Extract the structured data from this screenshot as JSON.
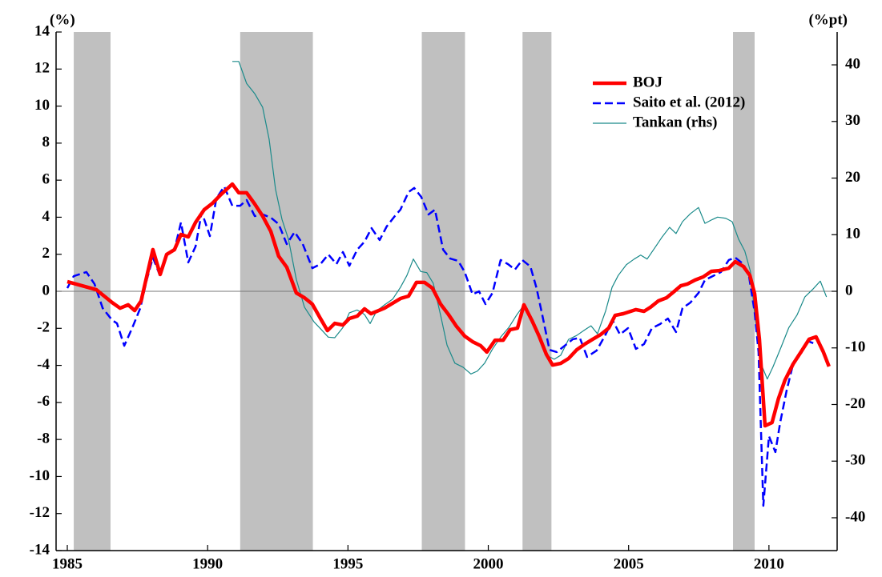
{
  "chart_data": {
    "type": "line",
    "y_label": "(%)",
    "y2_label": "(%pt)",
    "xlim": [
      1984.6,
      2012.43
    ],
    "xticks": [
      1985,
      1990,
      1995,
      2000,
      2005,
      2010
    ],
    "ylim": [
      -14,
      14
    ],
    "yticks": [
      -14,
      -12,
      -10,
      -8,
      -6,
      -4,
      -2,
      0,
      2,
      4,
      6,
      8,
      10,
      12,
      14
    ],
    "y2lim": [
      -45.8,
      45.8
    ],
    "y2ticks": [
      -40,
      -30,
      -20,
      -10,
      0,
      10,
      20,
      30,
      40
    ],
    "shaded_periods": [
      [
        1985.23,
        1986.54
      ],
      [
        1991.16,
        1993.75
      ],
      [
        1997.63,
        1999.17
      ],
      [
        2001.22,
        2002.25
      ],
      [
        2008.72,
        2009.49
      ]
    ],
    "shade_color": "#c0c0c0",
    "legend": "upper-right",
    "series": [
      {
        "name": "BOJ",
        "color": "#ff0000",
        "linestyle": "solid",
        "linewidth": 4.5,
        "x": [
          1985.0,
          1986.03,
          1986.6,
          1986.88,
          1987.17,
          1987.4,
          1987.63,
          1988.05,
          1988.31,
          1988.54,
          1988.82,
          1989.05,
          1989.31,
          1989.57,
          1989.88,
          1990.17,
          1990.45,
          1990.88,
          1991.11,
          1991.39,
          1991.68,
          1991.96,
          1992.25,
          1992.53,
          1992.82,
          1993.16,
          1993.45,
          1993.73,
          1994.02,
          1994.27,
          1994.53,
          1994.82,
          1995.05,
          1995.33,
          1995.59,
          1995.82,
          1996.3,
          1996.87,
          1997.16,
          1997.44,
          1997.73,
          1998.01,
          1998.3,
          1998.58,
          1998.87,
          1999.16,
          1999.44,
          1999.73,
          1999.95,
          2000.24,
          2000.53,
          2000.78,
          2001.04,
          2001.27,
          2001.55,
          2001.81,
          2002.07,
          2002.29,
          2002.58,
          2002.86,
          2003.15,
          2003.44,
          2003.72,
          2004.01,
          2004.29,
          2004.52,
          2004.81,
          2005.26,
          2005.55,
          2005.78,
          2006.06,
          2006.35,
          2006.63,
          2006.86,
          2007.09,
          2007.37,
          2007.66,
          2007.95,
          2008.23,
          2008.57,
          2008.8,
          2009.09,
          2009.32,
          2009.49,
          2009.66,
          2009.86,
          2010.11,
          2010.34,
          2010.57,
          2010.86,
          2011.14,
          2011.43,
          2011.68,
          2011.94,
          2012.14
        ],
        "values": [
          0.52,
          0.09,
          -0.61,
          -0.91,
          -0.73,
          -1.04,
          -0.52,
          2.25,
          0.91,
          1.99,
          2.25,
          3.07,
          2.94,
          3.72,
          4.41,
          4.75,
          5.19,
          5.79,
          5.32,
          5.32,
          4.71,
          4.06,
          3.24,
          1.9,
          1.3,
          -0.09,
          -0.35,
          -0.69,
          -1.47,
          -2.12,
          -1.73,
          -1.82,
          -1.47,
          -1.34,
          -0.95,
          -1.21,
          -0.91,
          -0.39,
          -0.26,
          0.48,
          0.48,
          0.17,
          -0.69,
          -1.25,
          -1.9,
          -2.42,
          -2.72,
          -2.94,
          -3.28,
          -2.64,
          -2.64,
          -2.07,
          -1.99,
          -0.73,
          -1.56,
          -2.42,
          -3.41,
          -3.98,
          -3.89,
          -3.63,
          -3.16,
          -2.85,
          -2.59,
          -2.33,
          -1.99,
          -1.3,
          -1.21,
          -0.99,
          -1.08,
          -0.86,
          -0.52,
          -0.35,
          0.0,
          0.3,
          0.39,
          0.61,
          0.78,
          1.08,
          1.12,
          1.25,
          1.6,
          1.34,
          0.86,
          -0.13,
          -2.59,
          -7.26,
          -7.09,
          -5.79,
          -4.8,
          -3.93,
          -3.28,
          -2.59,
          -2.46,
          -3.28,
          -4.06
        ]
      },
      {
        "name": "Saito et al. (2012)",
        "color": "#0000ff",
        "linestyle": "dashed",
        "linewidth": 2.5,
        "x": [
          1985.0,
          1985.23,
          1985.68,
          1985.97,
          1986.26,
          1986.6,
          1986.77,
          1987.03,
          1987.31,
          1987.6,
          1987.83,
          1988.05,
          1988.31,
          1988.54,
          1988.82,
          1989.05,
          1989.31,
          1989.57,
          1989.79,
          1990.08,
          1990.31,
          1990.59,
          1990.88,
          1991.16,
          1991.39,
          1991.68,
          1991.96,
          1992.25,
          1992.53,
          1992.82,
          1993.1,
          1993.39,
          1993.73,
          1994.02,
          1994.3,
          1994.59,
          1994.82,
          1995.05,
          1995.33,
          1995.59,
          1995.84,
          1996.13,
          1996.38,
          1996.67,
          1996.87,
          1997.16,
          1997.36,
          1997.61,
          1997.87,
          1998.1,
          1998.39,
          1998.64,
          1998.93,
          1999.16,
          1999.44,
          1999.67,
          1999.9,
          2000.15,
          2000.44,
          2000.7,
          2000.95,
          2001.21,
          2001.5,
          2001.72,
          2001.95,
          2002.18,
          2002.44,
          2002.72,
          2003.01,
          2003.26,
          2003.52,
          2003.86,
          2004.15,
          2004.43,
          2004.69,
          2004.98,
          2005.26,
          2005.55,
          2005.83,
          2006.12,
          2006.4,
          2006.69,
          2006.92,
          2007.2,
          2007.49,
          2007.72,
          2008.0,
          2008.29,
          2008.57,
          2008.8,
          2009.09,
          2009.29,
          2009.49,
          2009.63,
          2009.8,
          2010.0,
          2010.23,
          2010.4,
          2010.63,
          2010.86,
          2011.14,
          2011.37,
          2011.66
        ],
        "values": [
          0.17,
          0.82,
          1.04,
          0.39,
          -0.91,
          -1.56,
          -1.73,
          -2.94,
          -1.99,
          -0.91,
          0.61,
          1.82,
          0.82,
          1.99,
          2.25,
          3.72,
          1.56,
          2.42,
          4.28,
          2.98,
          5.01,
          5.66,
          4.62,
          4.62,
          4.93,
          4.06,
          4.15,
          3.98,
          3.63,
          2.55,
          3.2,
          2.55,
          1.25,
          1.47,
          1.99,
          1.47,
          2.12,
          1.38,
          2.25,
          2.68,
          3.41,
          2.77,
          3.5,
          4.06,
          4.41,
          5.36,
          5.58,
          5.1,
          4.15,
          4.41,
          2.25,
          1.77,
          1.64,
          1.04,
          -0.17,
          0.0,
          -0.69,
          -0.09,
          1.69,
          1.47,
          1.17,
          1.69,
          1.34,
          0.17,
          -1.47,
          -3.16,
          -3.28,
          -2.94,
          -2.59,
          -2.51,
          -3.54,
          -3.2,
          -2.42,
          -1.56,
          -2.33,
          -1.99,
          -3.11,
          -2.85,
          -1.99,
          -1.77,
          -1.47,
          -2.2,
          -0.91,
          -0.61,
          -0.09,
          0.61,
          0.82,
          1.04,
          1.69,
          1.82,
          1.47,
          0.82,
          -1.12,
          -3.28,
          -11.58,
          -7.82,
          -8.68,
          -7.09,
          -5.36,
          -3.93,
          -3.37,
          -2.68,
          -2.85
        ]
      },
      {
        "name": "Tankan (rhs)",
        "color": "#1a8a8a",
        "linestyle": "solid",
        "linewidth": 1.2,
        "axis": "y2",
        "x": [
          1990.88,
          1991.11,
          1991.39,
          1991.68,
          1991.96,
          1992.19,
          1992.42,
          1992.65,
          1992.88,
          1993.16,
          1993.45,
          1993.79,
          1994.02,
          1994.3,
          1994.53,
          1994.82,
          1995.05,
          1995.33,
          1995.59,
          1995.79,
          1996.02,
          1996.3,
          1996.59,
          1996.87,
          1997.1,
          1997.33,
          1997.59,
          1997.81,
          1998.04,
          1998.3,
          1998.53,
          1998.81,
          1999.1,
          1999.38,
          1999.61,
          1999.87,
          2000.15,
          2000.44,
          2000.73,
          2001.01,
          2001.27,
          2001.55,
          2001.84,
          2002.07,
          2002.35,
          2002.58,
          2002.86,
          2003.15,
          2003.44,
          2003.66,
          2003.89,
          2004.18,
          2004.41,
          2004.63,
          2004.92,
          2005.2,
          2005.43,
          2005.66,
          2005.95,
          2006.18,
          2006.46,
          2006.69,
          2006.92,
          2007.2,
          2007.49,
          2007.72,
          2007.95,
          2008.17,
          2008.46,
          2008.69,
          2008.92,
          2009.14,
          2009.34,
          2009.51,
          2009.71,
          2009.94,
          2010.14,
          2010.43,
          2010.71,
          2011.0,
          2011.28,
          2011.57,
          2011.83,
          2012.05
        ],
        "values": [
          40.6,
          40.6,
          36.7,
          34.9,
          32.5,
          26.9,
          18.0,
          12.7,
          9.2,
          2.1,
          -2.8,
          -5.4,
          -6.6,
          -8.1,
          -8.2,
          -6.4,
          -3.8,
          -3.3,
          -4.1,
          -5.7,
          -3.5,
          -2.4,
          -1.4,
          0.7,
          2.8,
          5.7,
          3.5,
          3.3,
          1.4,
          -4.2,
          -9.5,
          -12.7,
          -13.4,
          -14.6,
          -14.1,
          -12.7,
          -10.2,
          -8.1,
          -6.4,
          -4.2,
          -2.4,
          -5.2,
          -8.2,
          -11.3,
          -12.0,
          -11.3,
          -8.5,
          -7.8,
          -6.8,
          -6.1,
          -7.5,
          -3.5,
          0.7,
          2.8,
          4.7,
          5.7,
          6.4,
          5.7,
          7.8,
          9.5,
          11.3,
          10.2,
          12.3,
          13.7,
          14.8,
          12.0,
          12.6,
          13.1,
          12.9,
          12.3,
          9.2,
          7.1,
          3.5,
          -4.9,
          -12.7,
          -15.5,
          -13.4,
          -9.9,
          -6.4,
          -4.2,
          -1.0,
          0.4,
          1.8,
          -1.0
        ]
      }
    ]
  }
}
